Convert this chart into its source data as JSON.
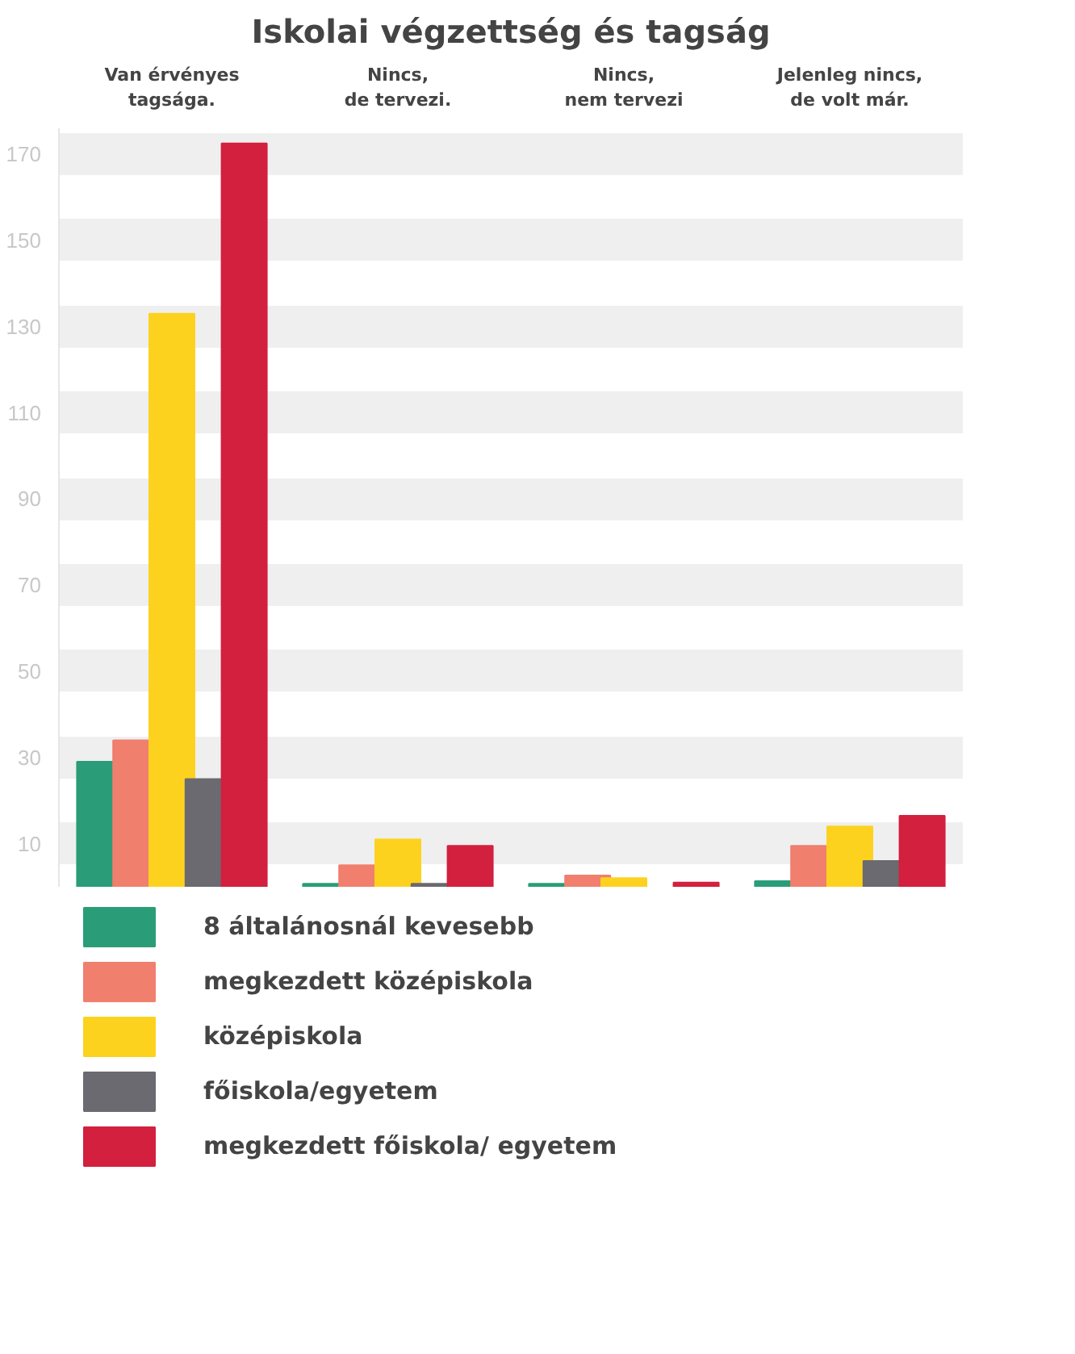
{
  "chart_data": {
    "type": "bar",
    "title": "Iskolai végzettség és tagság",
    "categories": [
      "Van érvényes\ntagsága.",
      "Nincs,\nde tervezi.",
      "Nincs,\nnem tervezi",
      "Jelenleg nincs,\nde volt már."
    ],
    "series": [
      {
        "name": "8 általánosnál kevesebb",
        "color": "#2a9d78",
        "values": [
          29,
          0.7,
          0.7,
          1.3
        ]
      },
      {
        "name": "megkezdett középiskola",
        "color": "#f07f6e",
        "values": [
          34,
          5,
          2.6,
          9.5
        ]
      },
      {
        "name": "középiskola",
        "color": "#fdd21f",
        "values": [
          133,
          11,
          2,
          14
        ]
      },
      {
        "name": "főiskola/egyetem",
        "color": "#6a6a70",
        "values": [
          25,
          0.7,
          null,
          6
        ]
      },
      {
        "name": "megkezdett főiskola/ egyetem",
        "color": "#d2203e",
        "values": [
          172.5,
          9.5,
          1,
          16.5
        ]
      }
    ],
    "ylim": [
      0,
      176
    ],
    "yticks": [
      10,
      30,
      50,
      70,
      90,
      110,
      130,
      150,
      170
    ],
    "grid": "y",
    "legend": "bottom"
  }
}
